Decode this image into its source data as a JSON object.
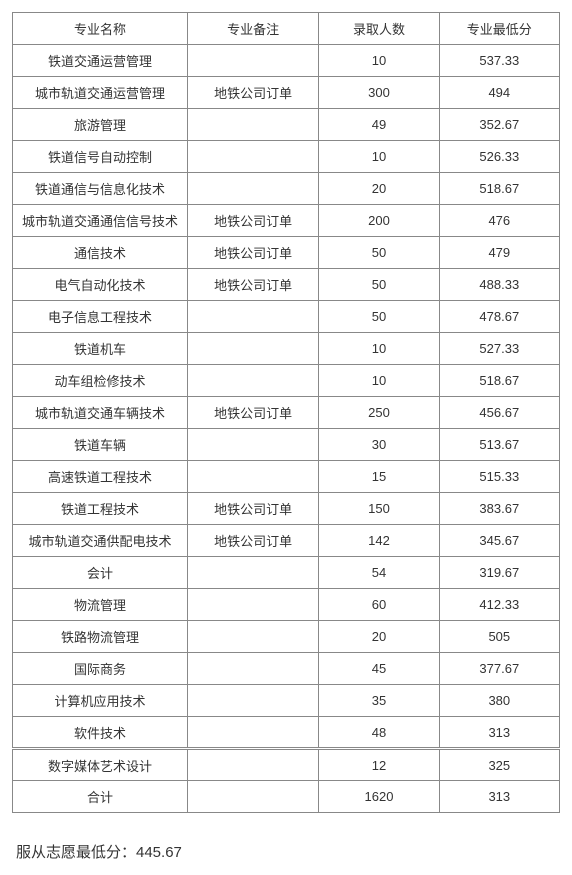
{
  "table": {
    "columns": [
      "专业名称",
      "专业备注",
      "录取人数",
      "专业最低分"
    ],
    "rows": [
      {
        "name": "铁道交通运营管理",
        "note": "",
        "count": "10",
        "score": "537.33"
      },
      {
        "name": "城市轨道交通运营管理",
        "note": "地铁公司订单",
        "count": "300",
        "score": "494"
      },
      {
        "name": "旅游管理",
        "note": "",
        "count": "49",
        "score": "352.67"
      },
      {
        "name": "铁道信号自动控制",
        "note": "",
        "count": "10",
        "score": "526.33"
      },
      {
        "name": "铁道通信与信息化技术",
        "note": "",
        "count": "20",
        "score": "518.67"
      },
      {
        "name": "城市轨道交通通信信号技术",
        "note": "地铁公司订单",
        "count": "200",
        "score": "476"
      },
      {
        "name": "通信技术",
        "note": "地铁公司订单",
        "count": "50",
        "score": "479"
      },
      {
        "name": "电气自动化技术",
        "note": "地铁公司订单",
        "count": "50",
        "score": "488.33"
      },
      {
        "name": "电子信息工程技术",
        "note": "",
        "count": "50",
        "score": "478.67"
      },
      {
        "name": "铁道机车",
        "note": "",
        "count": "10",
        "score": "527.33"
      },
      {
        "name": "动车组检修技术",
        "note": "",
        "count": "10",
        "score": "518.67"
      },
      {
        "name": "城市轨道交通车辆技术",
        "note": "地铁公司订单",
        "count": "250",
        "score": "456.67"
      },
      {
        "name": "铁道车辆",
        "note": "",
        "count": "30",
        "score": "513.67"
      },
      {
        "name": "高速铁道工程技术",
        "note": "",
        "count": "15",
        "score": "515.33"
      },
      {
        "name": "铁道工程技术",
        "note": "地铁公司订单",
        "count": "150",
        "score": "383.67"
      },
      {
        "name": "城市轨道交通供配电技术",
        "note": "地铁公司订单",
        "count": "142",
        "score": "345.67"
      },
      {
        "name": "会计",
        "note": "",
        "count": "54",
        "score": "319.67"
      },
      {
        "name": "物流管理",
        "note": "",
        "count": "60",
        "score": "412.33"
      },
      {
        "name": "铁路物流管理",
        "note": "",
        "count": "20",
        "score": "505"
      },
      {
        "name": "国际商务",
        "note": "",
        "count": "45",
        "score": "377.67"
      },
      {
        "name": "计算机应用技术",
        "note": "",
        "count": "35",
        "score": "380"
      },
      {
        "name": "软件技术",
        "note": "",
        "count": "48",
        "score": "313"
      },
      {
        "name": "数字媒体艺术设计",
        "note": "",
        "count": "12",
        "score": "325",
        "gap": true
      },
      {
        "name": "合计",
        "note": "",
        "count": "1620",
        "score": "313"
      }
    ]
  },
  "footer": {
    "text": "服从志愿最低分：445.67"
  }
}
